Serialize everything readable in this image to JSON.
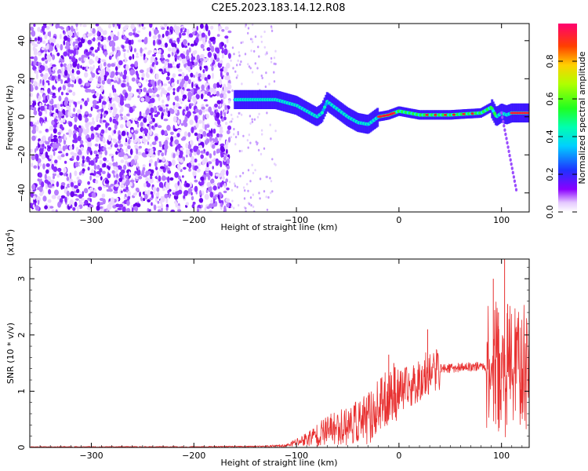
{
  "title": "C2E5.2023.183.14.12.R08",
  "chart_data": [
    {
      "type": "heatmap",
      "xlabel": "Height of straight line (km)",
      "ylabel": "Frequency (Hz)",
      "xlim": [
        -360,
        127
      ],
      "ylim": [
        -50,
        49
      ],
      "xticks": [
        -300,
        -200,
        -100,
        0,
        100
      ],
      "yticks": [
        -40,
        -20,
        0,
        20,
        40
      ],
      "ridge": {
        "x": [
          -160,
          -140,
          -120,
          -100,
          -90,
          -80,
          -75,
          -70,
          -60,
          -50,
          -40,
          -30,
          -20,
          -10,
          0,
          20,
          50,
          80,
          90,
          95,
          100,
          105,
          110,
          127
        ],
        "y": [
          9,
          9,
          9,
          6,
          3,
          0,
          2,
          8,
          4,
          0,
          -3,
          -4,
          0,
          1,
          3,
          1,
          1,
          2,
          5,
          0,
          2,
          1,
          2,
          2
        ]
      },
      "colorbar": {
        "label": "Normalized spectral amplitude",
        "range": [
          0,
          1
        ],
        "ticks": [
          0.0,
          0.2,
          0.4,
          0.6,
          0.8
        ]
      },
      "legend": "colorbar right",
      "grid": false
    },
    {
      "type": "line",
      "xlabel": "Height of straight line (km)",
      "ylabel": "SNR (10 * v/v)",
      "y_multiplier": "(x10",
      "y_multiplier_exp": "4",
      "y_multiplier_close": ")",
      "xlim": [
        -360,
        127
      ],
      "ylim": [
        0,
        3.35
      ],
      "xticks": [
        -300,
        -200,
        -100,
        0,
        100
      ],
      "yticks": [
        0,
        1,
        2,
        3
      ],
      "series_color": "#e83030",
      "envelope": {
        "x": [
          -360,
          -200,
          -130,
          -110,
          -90,
          -70,
          -50,
          -30,
          -20,
          -10,
          0,
          10,
          20,
          30,
          40,
          60,
          80,
          90,
          95,
          100,
          105,
          110,
          115,
          120,
          127
        ],
        "y": [
          0.01,
          0.01,
          0.02,
          0.03,
          0.15,
          0.3,
          0.4,
          0.5,
          0.7,
          0.9,
          1.0,
          1.05,
          1.2,
          1.35,
          1.4,
          1.42,
          1.45,
          1.4,
          1.5,
          1.2,
          1.3,
          1.5,
          1.45,
          1.45,
          1.4
        ]
      },
      "spikes": {
        "x": [
          -10,
          -5,
          28,
          92,
          97,
          103,
          106
        ],
        "y": [
          1.65,
          1.5,
          2.1,
          3.0,
          2.4,
          3.35,
          2.55
        ]
      },
      "grid": false
    }
  ]
}
